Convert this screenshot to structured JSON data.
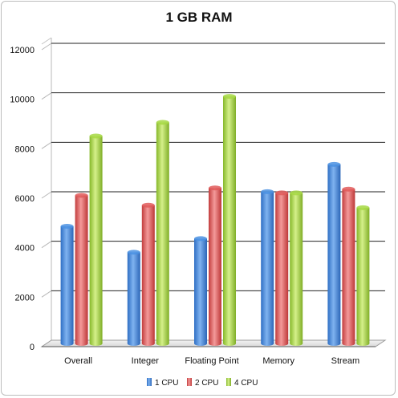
{
  "chart_data": {
    "type": "bar",
    "title": "1 GB RAM",
    "xlabel": "",
    "ylabel": "",
    "ylim": [
      0,
      12000
    ],
    "yticks": [
      0,
      2000,
      4000,
      6000,
      8000,
      10000,
      12000
    ],
    "grid": true,
    "legend_position": "bottom",
    "categories": [
      "Overall",
      "Integer",
      "Floating Point",
      "Memory",
      "Stream"
    ],
    "series": [
      {
        "name": "1 CPU",
        "color": "#4a90e2",
        "values": [
          4800,
          3750,
          4300,
          6200,
          7300
        ]
      },
      {
        "name": "2 CPU",
        "color": "#e15b5b",
        "values": [
          6050,
          5650,
          6350,
          6150,
          6300
        ]
      },
      {
        "name": "4 CPU",
        "color": "#a6d843",
        "values": [
          8450,
          9000,
          10050,
          6150,
          5550
        ]
      }
    ]
  }
}
